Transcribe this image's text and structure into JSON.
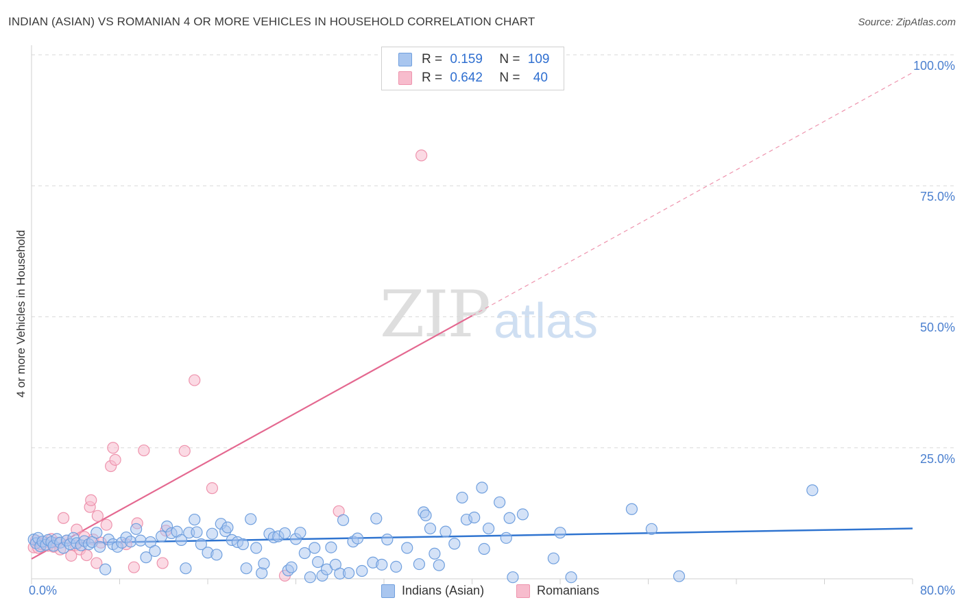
{
  "title": "INDIAN (ASIAN) VS ROMANIAN 4 OR MORE VEHICLES IN HOUSEHOLD CORRELATION CHART",
  "source": "Source: ZipAtlas.com",
  "watermark": {
    "zip": "ZIP",
    "atlas": "atlas"
  },
  "legend": {
    "series1": {
      "r_label": "R = ",
      "r_value": "0.159",
      "n_label": "N = ",
      "n_value": "109"
    },
    "series2": {
      "r_label": "R = ",
      "r_value": "0.642",
      "n_label": "N = ",
      "n_value": "40"
    }
  },
  "colors": {
    "blue_fill": "#a9c6ef",
    "blue_stroke": "#6f9fde",
    "blue_line": "#2f74d0",
    "pink_fill": "#f7bccd",
    "pink_stroke": "#ee93ad",
    "pink_line": "#e46890",
    "grid": "#d9d9d9",
    "tick_text": "#4a7fcf"
  },
  "chart_data": {
    "type": "scatter",
    "title": "INDIAN (ASIAN) VS ROMANIAN 4 OR MORE VEHICLES IN HOUSEHOLD CORRELATION CHART",
    "xlabel": "",
    "ylabel": "4 or more Vehicles in Household",
    "xlim": [
      0,
      80
    ],
    "ylim": [
      0,
      100
    ],
    "x_tick_labels": [
      "0.0%",
      "80.0%"
    ],
    "y_ticks": [
      25,
      50,
      75,
      100
    ],
    "y_tick_labels": [
      "25.0%",
      "50.0%",
      "75.0%",
      "100.0%"
    ],
    "series": [
      {
        "name": "Indians (Asian)",
        "color": "blue",
        "r": 0.159,
        "n": 109,
        "trend": {
          "x0": 0,
          "y0": 6.7,
          "x1": 80,
          "y1": 9.6
        },
        "points": [
          [
            0.2,
            7.5
          ],
          [
            0.4,
            6.8
          ],
          [
            0.6,
            7.8
          ],
          [
            0.8,
            6.2
          ],
          [
            1.0,
            7.1
          ],
          [
            1.3,
            6.5
          ],
          [
            1.5,
            7.4
          ],
          [
            1.8,
            7.0
          ],
          [
            2.0,
            6.3
          ],
          [
            2.3,
            7.6
          ],
          [
            2.6,
            6.9
          ],
          [
            2.9,
            5.9
          ],
          [
            3.2,
            7.3
          ],
          [
            3.5,
            6.6
          ],
          [
            3.8,
            7.8
          ],
          [
            4.1,
            6.8
          ],
          [
            4.5,
            6.4
          ],
          [
            4.8,
            7.2
          ],
          [
            5.2,
            6.6
          ],
          [
            5.5,
            7.0
          ],
          [
            5.9,
            8.8
          ],
          [
            6.2,
            6.1
          ],
          [
            6.7,
            1.8
          ],
          [
            7.0,
            7.5
          ],
          [
            7.4,
            6.6
          ],
          [
            7.8,
            6.1
          ],
          [
            8.2,
            6.9
          ],
          [
            8.6,
            7.9
          ],
          [
            9.0,
            7.1
          ],
          [
            9.5,
            9.5
          ],
          [
            9.9,
            7.3
          ],
          [
            10.4,
            4.1
          ],
          [
            10.8,
            7.0
          ],
          [
            11.2,
            5.3
          ],
          [
            11.8,
            8.1
          ],
          [
            12.3,
            10.0
          ],
          [
            12.7,
            8.7
          ],
          [
            13.2,
            9.0
          ],
          [
            13.6,
            7.4
          ],
          [
            14.0,
            2.0
          ],
          [
            14.3,
            8.8
          ],
          [
            14.8,
            11.3
          ],
          [
            15.0,
            8.9
          ],
          [
            15.4,
            6.6
          ],
          [
            16.0,
            5.0
          ],
          [
            16.4,
            8.6
          ],
          [
            16.8,
            4.6
          ],
          [
            17.2,
            10.5
          ],
          [
            17.6,
            9.1
          ],
          [
            17.8,
            9.8
          ],
          [
            18.2,
            7.4
          ],
          [
            18.7,
            7.0
          ],
          [
            19.2,
            6.6
          ],
          [
            19.5,
            2.0
          ],
          [
            19.9,
            11.4
          ],
          [
            20.4,
            5.9
          ],
          [
            20.9,
            1.1
          ],
          [
            21.1,
            2.9
          ],
          [
            21.6,
            8.6
          ],
          [
            22.0,
            7.9
          ],
          [
            22.4,
            8.1
          ],
          [
            23.0,
            8.7
          ],
          [
            23.3,
            1.6
          ],
          [
            23.6,
            2.2
          ],
          [
            24.0,
            7.6
          ],
          [
            24.4,
            8.8
          ],
          [
            24.8,
            4.9
          ],
          [
            25.3,
            0.3
          ],
          [
            25.7,
            5.9
          ],
          [
            26.0,
            3.2
          ],
          [
            26.4,
            0.6
          ],
          [
            26.8,
            1.8
          ],
          [
            27.2,
            6.0
          ],
          [
            27.6,
            2.7
          ],
          [
            28.0,
            1.0
          ],
          [
            28.3,
            11.2
          ],
          [
            28.8,
            1.1
          ],
          [
            29.2,
            7.1
          ],
          [
            29.6,
            7.7
          ],
          [
            30.0,
            1.5
          ],
          [
            31.0,
            3.1
          ],
          [
            31.3,
            11.5
          ],
          [
            31.8,
            2.7
          ],
          [
            32.3,
            7.5
          ],
          [
            33.1,
            2.3
          ],
          [
            34.1,
            5.9
          ],
          [
            35.2,
            2.8
          ],
          [
            35.6,
            12.7
          ],
          [
            35.8,
            12.1
          ],
          [
            36.2,
            9.6
          ],
          [
            36.6,
            4.8
          ],
          [
            37.0,
            2.6
          ],
          [
            37.6,
            9.0
          ],
          [
            38.4,
            6.7
          ],
          [
            39.1,
            15.5
          ],
          [
            39.5,
            11.3
          ],
          [
            40.2,
            11.7
          ],
          [
            40.9,
            17.4
          ],
          [
            41.1,
            5.7
          ],
          [
            41.5,
            9.6
          ],
          [
            42.5,
            14.6
          ],
          [
            43.1,
            7.8
          ],
          [
            43.4,
            11.6
          ],
          [
            43.7,
            0.3
          ],
          [
            44.6,
            12.3
          ],
          [
            47.4,
            3.9
          ],
          [
            48.0,
            8.8
          ],
          [
            49.0,
            0.3
          ],
          [
            54.5,
            13.3
          ],
          [
            56.3,
            9.5
          ],
          [
            58.8,
            0.5
          ],
          [
            70.9,
            16.9
          ]
        ]
      },
      {
        "name": "Romanians",
        "color": "pink",
        "r": 0.642,
        "n": 40,
        "trend": {
          "x0": 0,
          "y0": 3.8,
          "x1": 40,
          "y1": 50.2,
          "dashed_to_x": 80,
          "dashed_to_y": 96.6
        },
        "points": [
          [
            0.2,
            6.0
          ],
          [
            0.4,
            7.3
          ],
          [
            0.6,
            5.9
          ],
          [
            0.9,
            6.6
          ],
          [
            1.2,
            7.0
          ],
          [
            1.5,
            6.3
          ],
          [
            1.8,
            7.6
          ],
          [
            2.0,
            6.1
          ],
          [
            2.3,
            6.9
          ],
          [
            2.6,
            5.6
          ],
          [
            2.9,
            11.6
          ],
          [
            3.2,
            7.3
          ],
          [
            3.6,
            4.4
          ],
          [
            4.0,
            6.4
          ],
          [
            4.1,
            9.4
          ],
          [
            4.4,
            5.6
          ],
          [
            4.8,
            8.0
          ],
          [
            5.0,
            4.5
          ],
          [
            5.3,
            13.7
          ],
          [
            5.4,
            15.0
          ],
          [
            5.6,
            7.5
          ],
          [
            5.9,
            3.0
          ],
          [
            6.0,
            12.0
          ],
          [
            6.3,
            6.9
          ],
          [
            6.8,
            10.3
          ],
          [
            7.2,
            21.5
          ],
          [
            7.4,
            25.0
          ],
          [
            7.6,
            22.7
          ],
          [
            8.6,
            6.6
          ],
          [
            9.3,
            2.2
          ],
          [
            9.6,
            10.6
          ],
          [
            10.2,
            24.5
          ],
          [
            11.9,
            3.0
          ],
          [
            12.2,
            9.2
          ],
          [
            13.9,
            24.4
          ],
          [
            14.8,
            37.9
          ],
          [
            16.4,
            17.3
          ],
          [
            23.0,
            0.6
          ],
          [
            27.9,
            12.9
          ],
          [
            35.4,
            80.8
          ]
        ]
      }
    ]
  },
  "bottom_legend": {
    "series1": "Indians (Asian)",
    "series2": "Romanians"
  }
}
